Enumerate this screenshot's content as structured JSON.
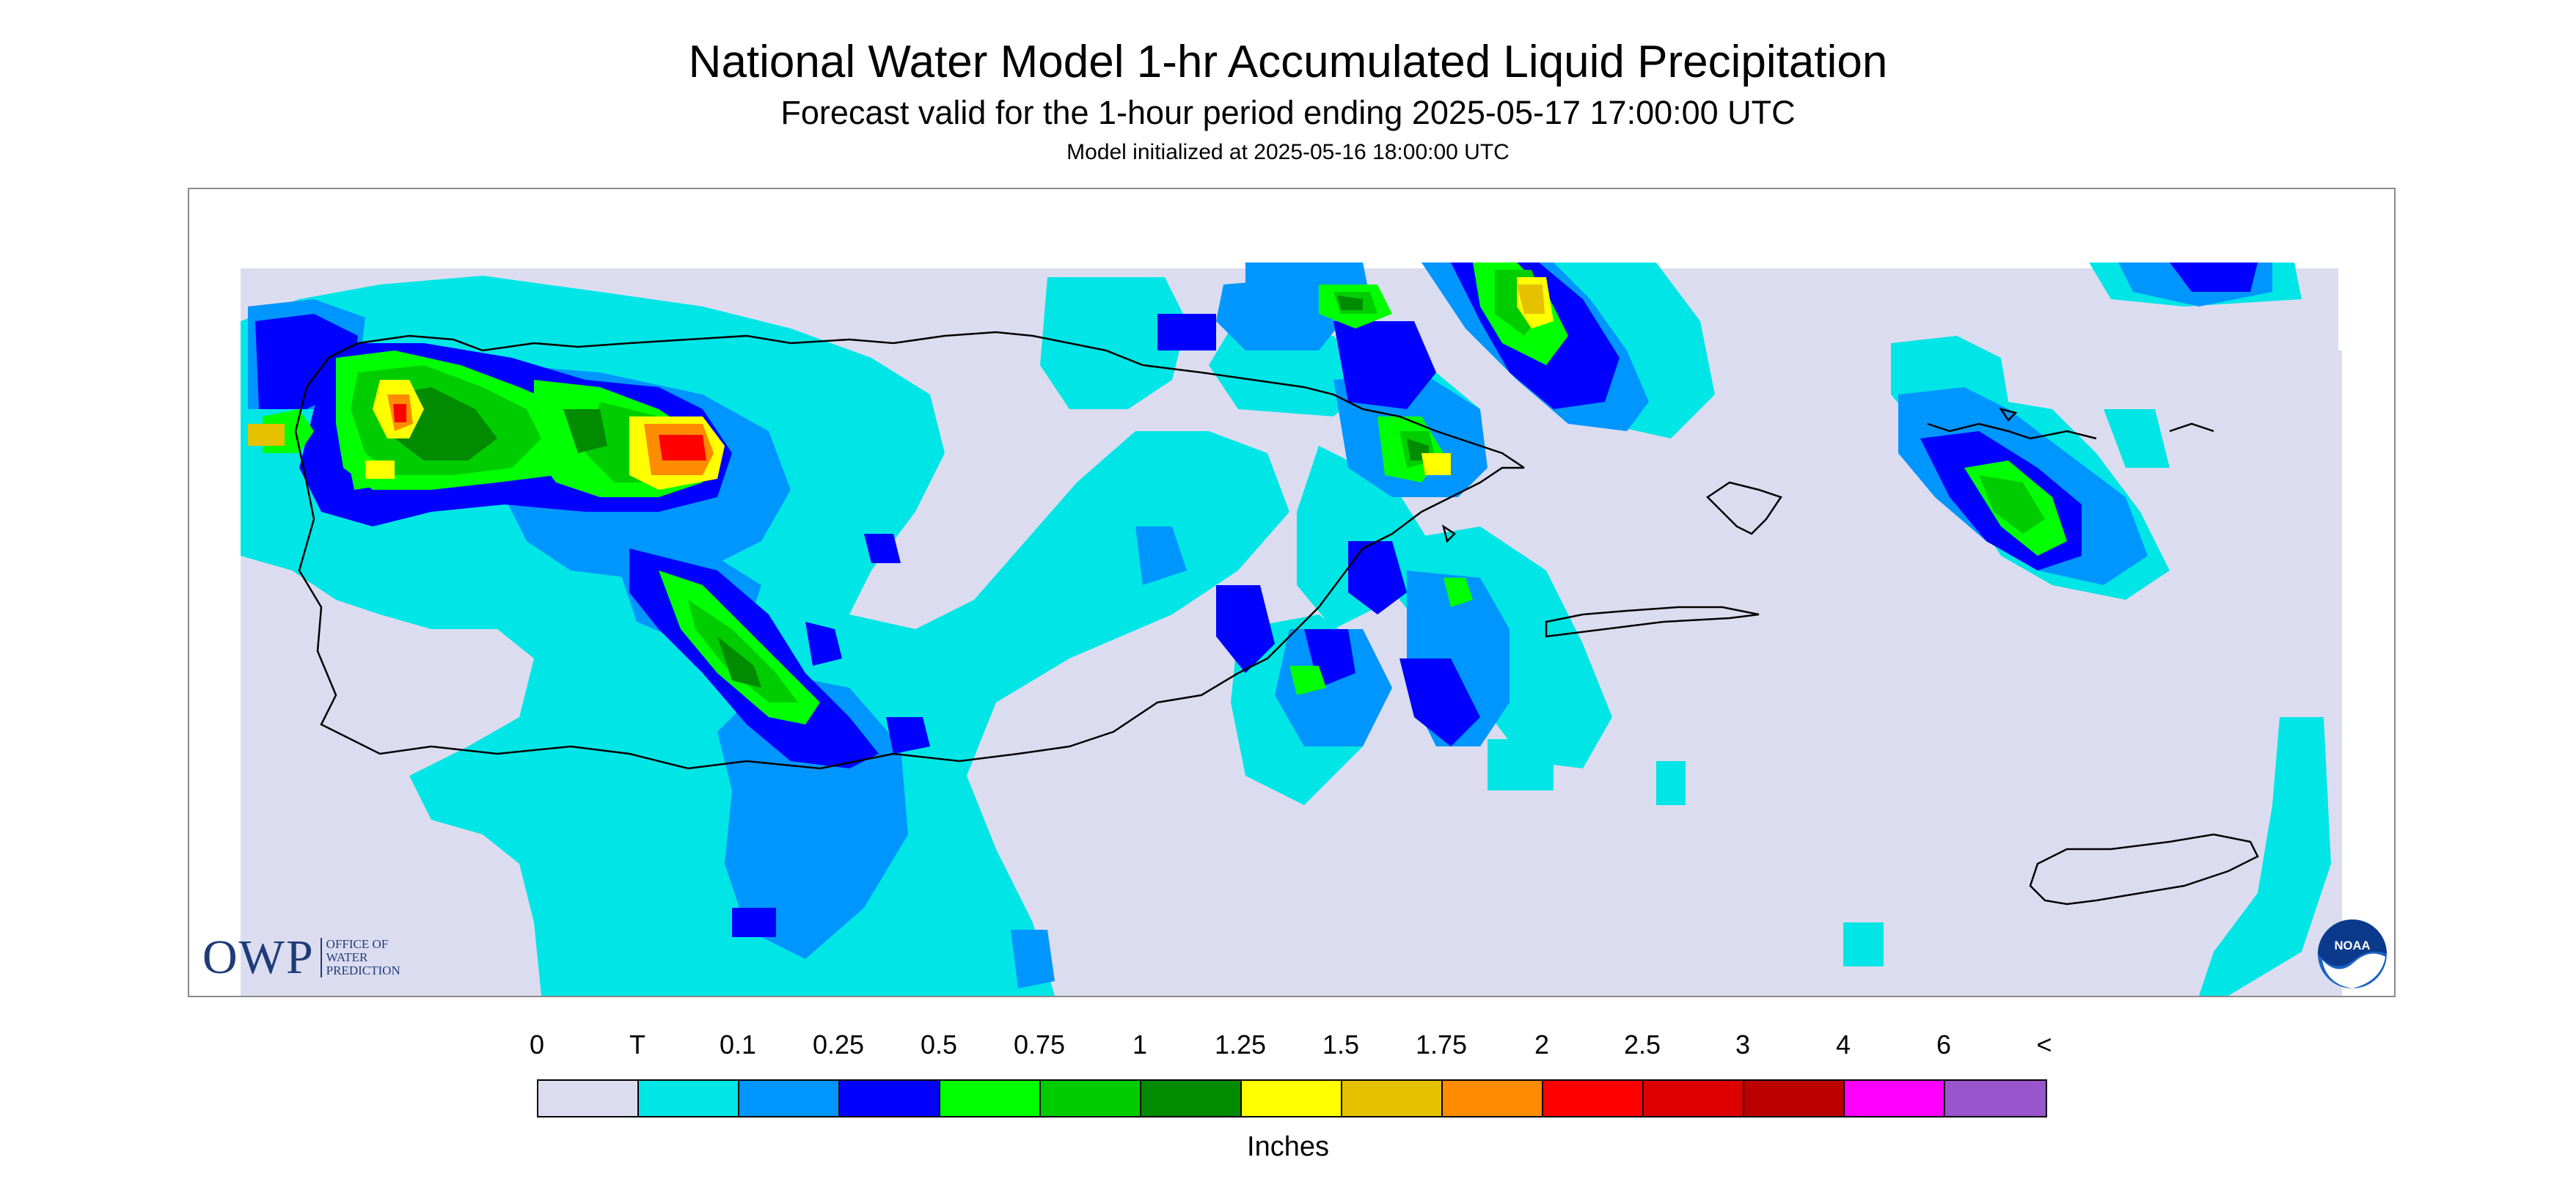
{
  "header": {
    "title": "National Water Model 1-hr Accumulated Liquid Precipitation",
    "subtitle": "Forecast valid for the 1-hour period ending 2025-05-17 17:00:00 UTC",
    "init": "Model initialized at 2025-05-16 18:00:00 UTC"
  },
  "logos": {
    "owp_mark": "OWP",
    "owp_text": [
      "OFFICE OF",
      "WATER",
      "PREDICTION"
    ],
    "noaa_text": "NOAA"
  },
  "legend": {
    "labels": [
      "0",
      "T",
      "0.1",
      "0.25",
      "0.5",
      "0.75",
      "1",
      "1.25",
      "1.5",
      "1.75",
      "2",
      "2.5",
      "3",
      "4",
      "6",
      "<"
    ],
    "colors": [
      "#dcdcf0",
      "#00e6e6",
      "#0096ff",
      "#0000ff",
      "#00ff00",
      "#00cd00",
      "#008b00",
      "#ffff00",
      "#e5c100",
      "#ff8c00",
      "#ff0000",
      "#dd0000",
      "#bb0000",
      "#ff00ff",
      "#9955cc"
    ],
    "units": "Inches"
  },
  "colors": {
    "no_precip": "#dcdcf0",
    "trace": "#00e6e6",
    "light": "#0096ff",
    "moderate": "#0000ff",
    "green_light": "#00ff00",
    "green_mid": "#00cd00",
    "green_dark": "#008b00",
    "yellow": "#ffff00",
    "gold": "#e5c100",
    "orange": "#ff8c00",
    "red": "#ff0000"
  }
}
